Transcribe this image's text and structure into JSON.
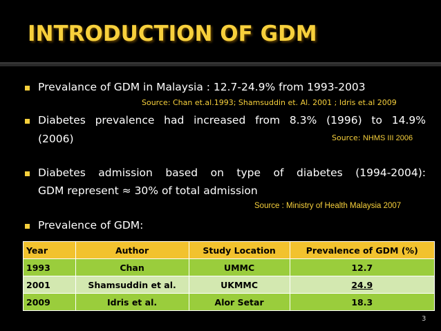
{
  "slide": {
    "title": "INTRODUCTION OF GDM",
    "page_number": "3"
  },
  "bullets": [
    {
      "text": "Prevalance of GDM in Malaysia : 12.7-24.9% from 1993-2003",
      "source": "Source: Chan et.al.1993; Shamsuddin et. Al. 2001 ; Idris et.al 2009"
    },
    {
      "line1": "Diabetes prevalence had increased from 8.3% (1996) to 14.9%",
      "line2": "(2006)",
      "source_prefix": "Source: ",
      "source_name": "NHMS III 2006"
    },
    {
      "line1": "Diabetes admission based on type of diabetes (1994-2004):",
      "line2": "GDM represent ≈ 30% of total admission",
      "source": "Source : Ministry of Health Malaysia 2007"
    },
    {
      "text": "Prevalence of GDM:"
    }
  ],
  "table": {
    "headers": [
      "Year",
      "Author",
      "Study Location",
      "Prevalence of GDM (%)"
    ],
    "rows": [
      [
        "1993",
        "Chan",
        "UMMC",
        "12.7"
      ],
      [
        "2001",
        "Shamsuddin et al.",
        "UKMMC",
        "24.9"
      ],
      [
        "2009",
        "Idris et al.",
        "Alor Setar",
        "18.3"
      ]
    ]
  },
  "colors": {
    "background": "#000000",
    "title": "#F7D03C",
    "bullet": "#F7D03C",
    "source_text": "#F7D03C",
    "table_header": "#F2C22E",
    "table_row_dark": "#9ACD3C",
    "table_row_light": "#D3E8B0"
  }
}
